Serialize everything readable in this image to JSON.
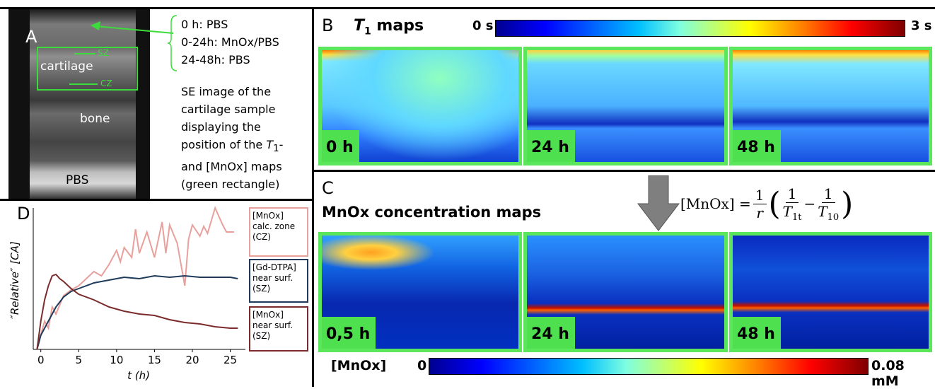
{
  "panel_a": {
    "label": "A",
    "image_labels": {
      "cartilage": "cartilage",
      "bone": "bone",
      "pbs": "PBS",
      "sz": "SZ",
      "cz": "CZ"
    },
    "legend": [
      "0 h: PBS",
      "0-24h: MnOx/PBS",
      "24-48h: PBS"
    ],
    "caption": [
      "SE image of the",
      "cartilage sample",
      "displaying the",
      [
        "position of the ",
        "T",
        "1",
        "-"
      ],
      "and [MnOx] maps",
      "(green rectangle)"
    ]
  },
  "panel_b": {
    "label": "B",
    "title": [
      "T",
      "1",
      " maps"
    ],
    "colorbar_min": "0 s",
    "colorbar_max": "3 s",
    "maps": [
      "0 h",
      "24 h",
      "48 h"
    ]
  },
  "panel_c": {
    "label": "C",
    "title": "MnOx concentration maps",
    "formula": {
      "lhs": "[MnOx]",
      "eq": "=",
      "f1_num": "1",
      "f1_den": "r",
      "lparen": "(",
      "f2_num": "1",
      "f2_den": "T",
      "f2_sub": "1t",
      "minus": "−",
      "f3_num": "1",
      "f3_den": "T",
      "f3_sub": "10",
      "rparen": ")"
    },
    "maps": [
      "0,5 h",
      "24 h",
      "48 h"
    ],
    "colorbar_label": "[MnOx]",
    "colorbar_min": "0",
    "colorbar_max": "0.08 mM"
  },
  "chart_data": {
    "type": "line",
    "label": "D",
    "y_label": "″Relative″ [CA]",
    "x_label": "t (h)",
    "xlim": [
      -1,
      27
    ],
    "ylim": [
      0,
      1
    ],
    "xticks": [
      0,
      5,
      10,
      15,
      20,
      25
    ],
    "series": [
      {
        "name": "[MnOx]\ncalc. zone\n(CZ)",
        "color": "#e8a09c",
        "x": [
          -0.5,
          0,
          0.5,
          1,
          1.5,
          2,
          3,
          4,
          5,
          6,
          7,
          8,
          9,
          10,
          10.5,
          11,
          12,
          12.5,
          13,
          14,
          15,
          16,
          16.5,
          17,
          18,
          19,
          19.5,
          20,
          21,
          21.5,
          22,
          23,
          24,
          24.5,
          25.5
        ],
        "values": [
          0,
          0.1,
          0.2,
          0.15,
          0.3,
          0.25,
          0.38,
          0.42,
          0.45,
          0.5,
          0.55,
          0.52,
          0.6,
          0.7,
          0.62,
          0.72,
          0.65,
          0.85,
          0.68,
          0.83,
          0.65,
          0.9,
          0.68,
          0.88,
          0.75,
          0.45,
          0.78,
          0.88,
          0.8,
          0.87,
          0.82,
          1.0,
          0.88,
          0.83,
          0.83
        ]
      },
      {
        "name": "[Gd-DTPA]\nnear surf.\n(SZ)",
        "color": "#1f3a5a",
        "x": [
          -0.5,
          0,
          1,
          2,
          3,
          4,
          5,
          7,
          9,
          11,
          13,
          15,
          17,
          19,
          21,
          23,
          25,
          26
        ],
        "values": [
          0,
          0.1,
          0.2,
          0.3,
          0.37,
          0.41,
          0.43,
          0.47,
          0.49,
          0.51,
          0.5,
          0.52,
          0.51,
          0.52,
          0.51,
          0.51,
          0.51,
          0.5
        ]
      },
      {
        "name": "[MnOx]\nnear surf.\n(SZ)",
        "color": "#7b2b2b",
        "x": [
          -0.5,
          0,
          0.5,
          1,
          1.5,
          2,
          2.5,
          3,
          4,
          5,
          7,
          9,
          11,
          13,
          15,
          17,
          19,
          21,
          23,
          25,
          26
        ],
        "values": [
          0,
          0.2,
          0.35,
          0.45,
          0.52,
          0.53,
          0.5,
          0.48,
          0.43,
          0.39,
          0.35,
          0.3,
          0.27,
          0.25,
          0.24,
          0.21,
          0.19,
          0.18,
          0.16,
          0.15,
          0.15
        ]
      }
    ]
  }
}
